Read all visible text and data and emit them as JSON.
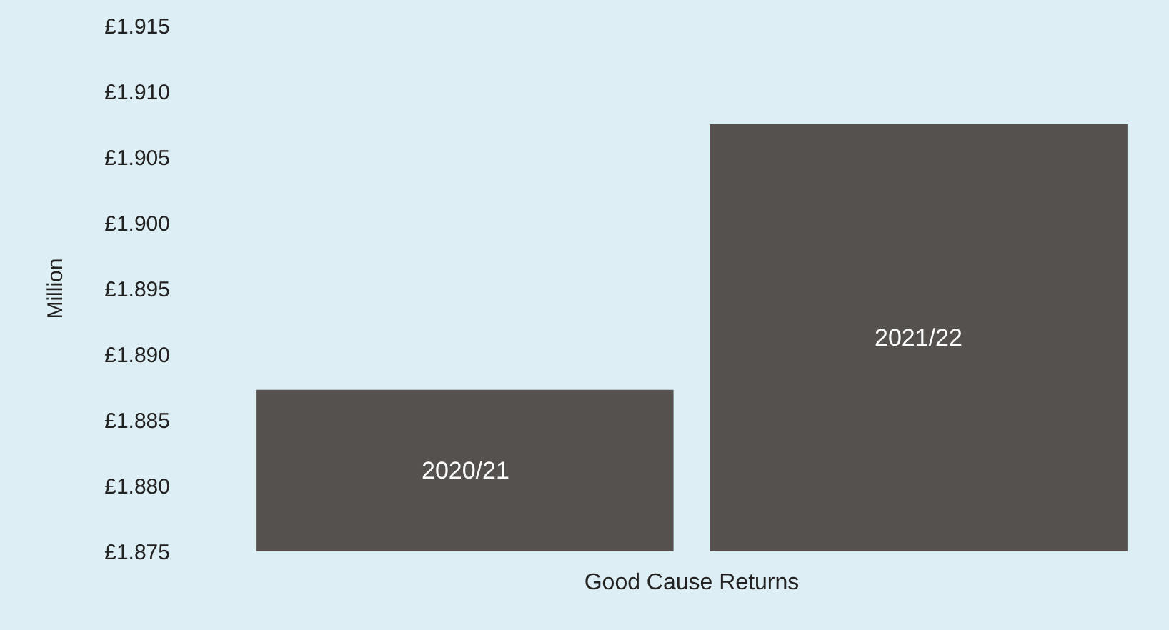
{
  "chart_data": {
    "type": "bar",
    "xlabel": "Good Cause Returns",
    "ylabel": "Million",
    "categories": [
      "2020/21",
      "2021/22"
    ],
    "values": [
      1.8873,
      1.9075
    ],
    "color": "#54514f",
    "ylim": [
      1.875,
      1.915
    ],
    "yticks": [
      {
        "value": 1.875,
        "label": "£1.875"
      },
      {
        "value": 1.88,
        "label": "£1.880"
      },
      {
        "value": 1.885,
        "label": "£1.885"
      },
      {
        "value": 1.89,
        "label": "£1.890"
      },
      {
        "value": 1.895,
        "label": "£1.895"
      },
      {
        "value": 1.9,
        "label": "£1.900"
      },
      {
        "value": 1.905,
        "label": "£1.905"
      },
      {
        "value": 1.91,
        "label": "£1.910"
      },
      {
        "value": 1.915,
        "label": "£1.915"
      }
    ],
    "tick_labels": "y",
    "grid": false
  }
}
